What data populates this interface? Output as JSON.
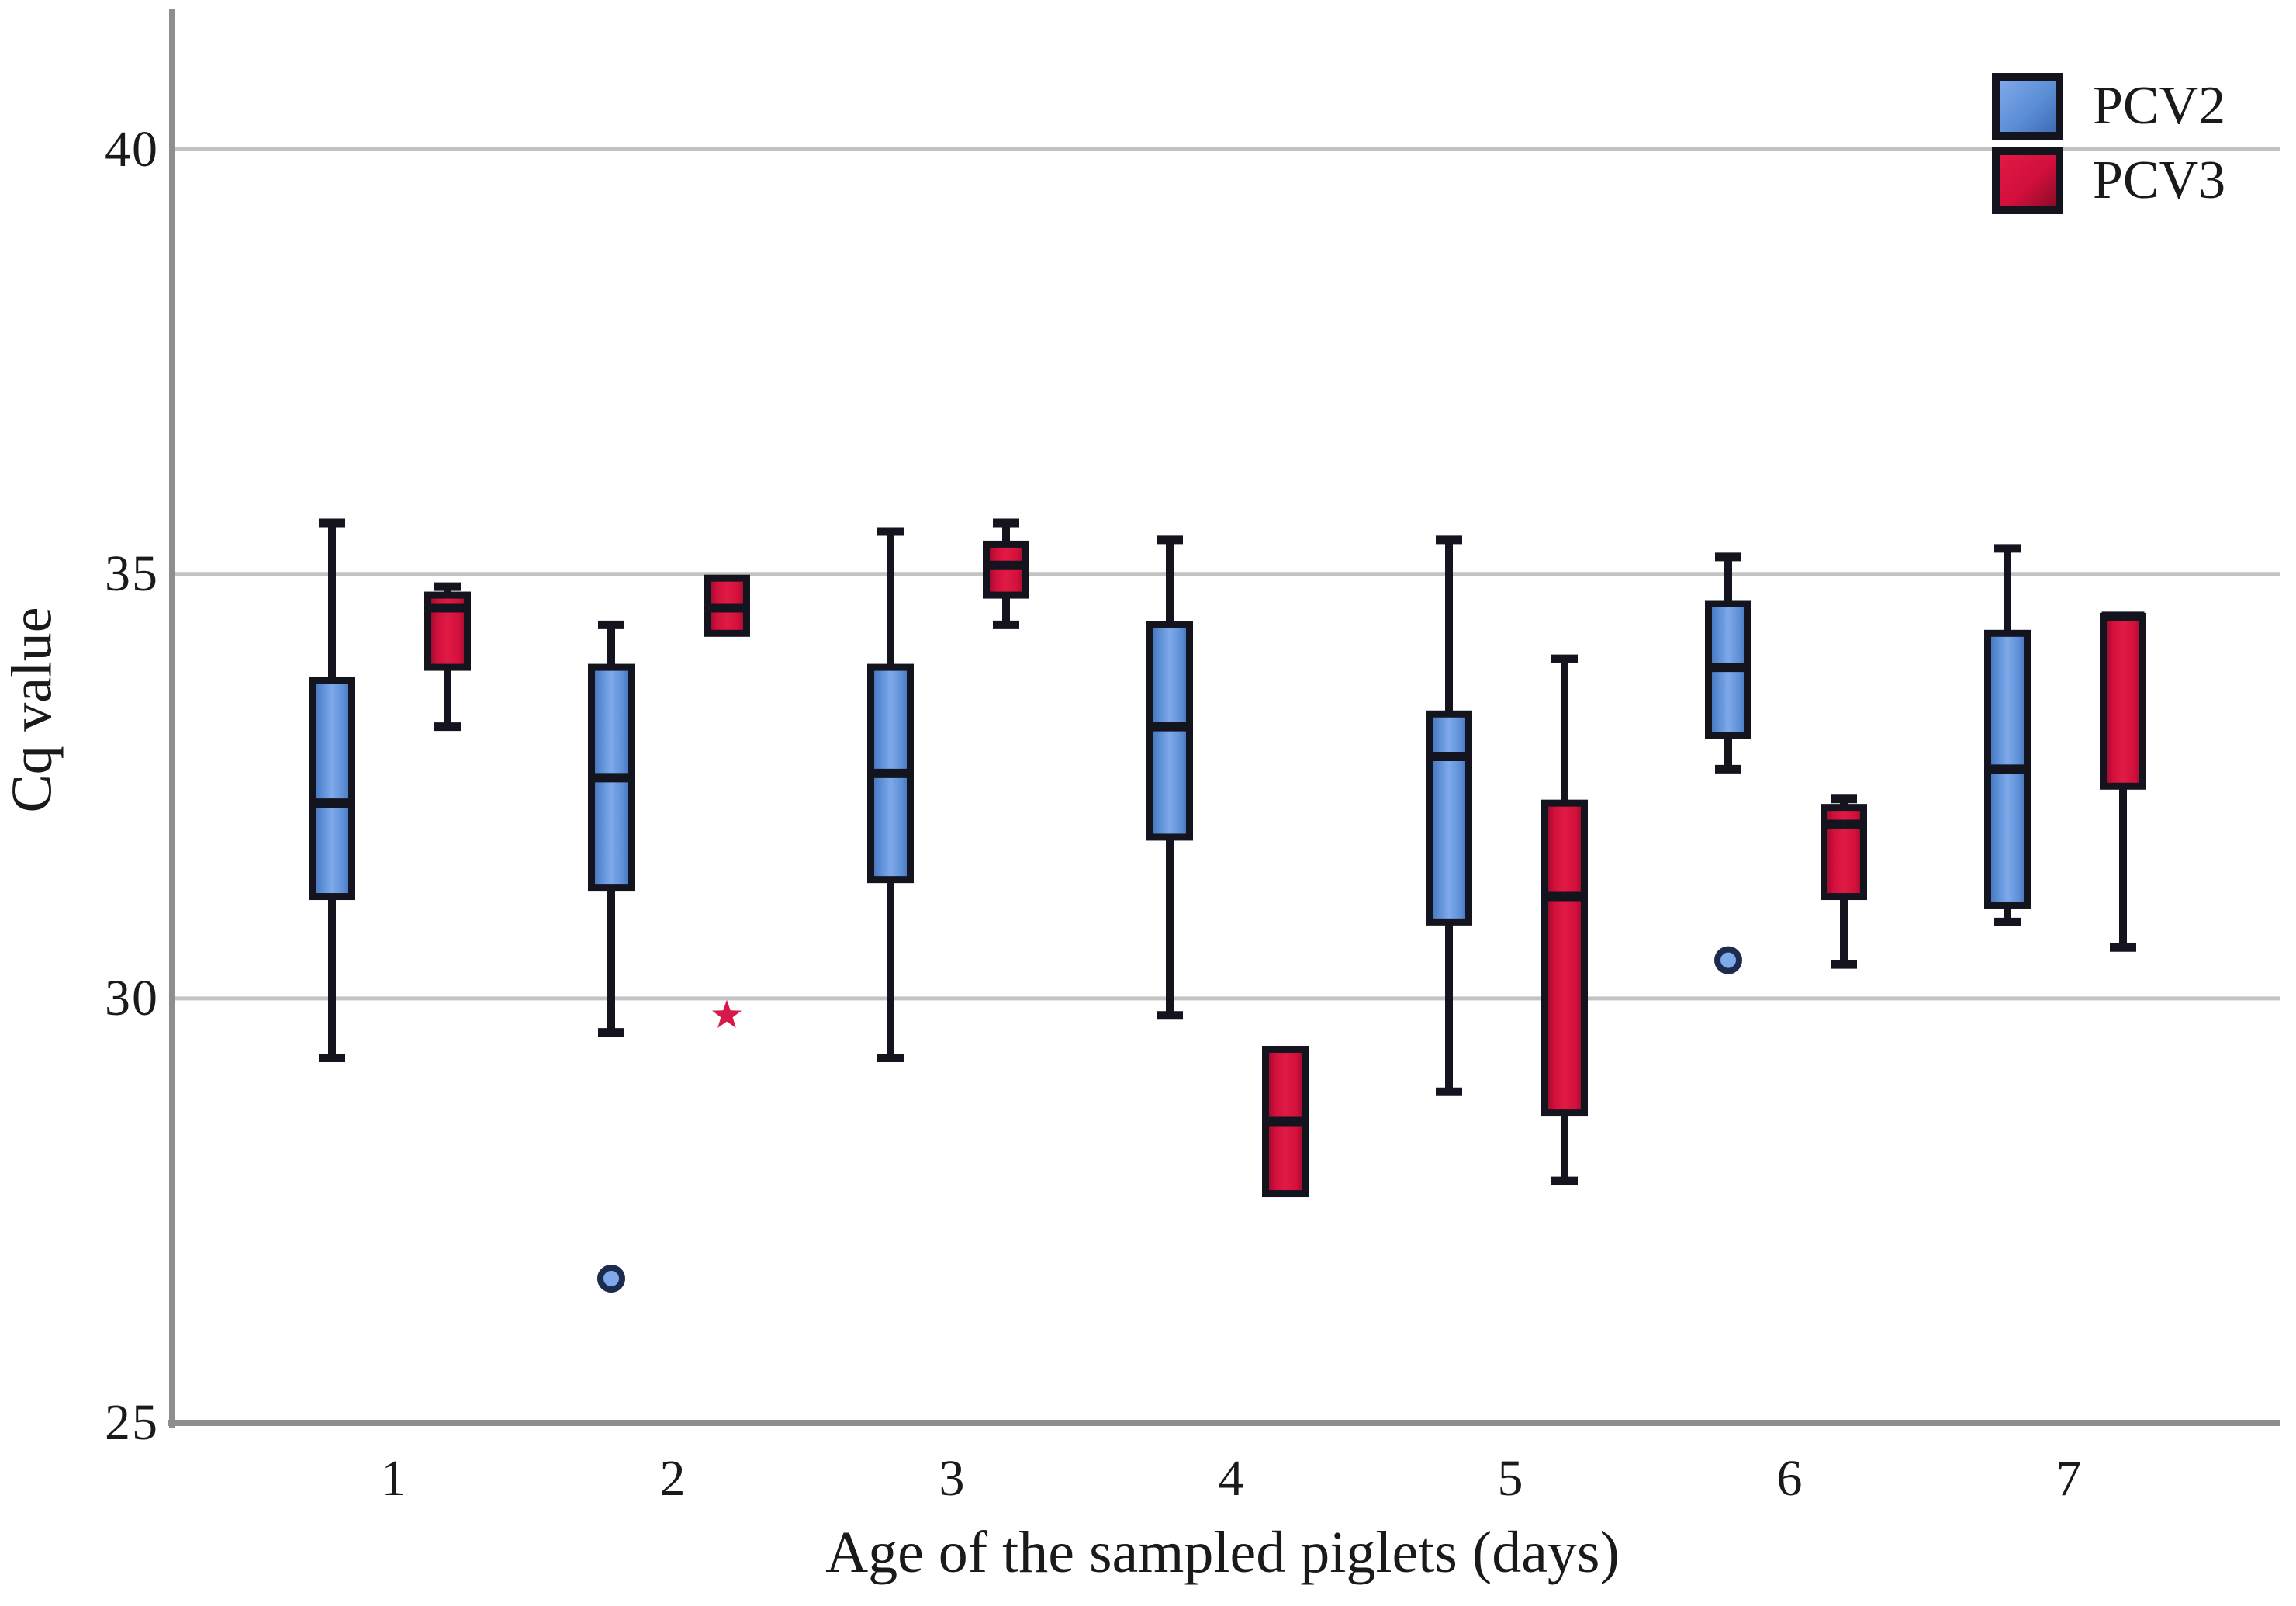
{
  "chart_data": {
    "type": "boxplot",
    "title": "",
    "xlabel": "Age of the sampled piglets (days)",
    "ylabel": "Cq value",
    "categories": [
      "1",
      "2",
      "3",
      "4",
      "5",
      "6",
      "7"
    ],
    "y_tick_labels": [
      "40",
      "35",
      "30",
      "25"
    ],
    "y_tick_values": [
      40,
      35,
      30,
      25
    ],
    "grid_values": [
      30,
      35,
      40
    ],
    "ylim": [
      25,
      41.65
    ],
    "grid": true,
    "legend_position": "top-right",
    "colors": {
      "axis": "#8e8e8e",
      "grid": "#c3c3c3",
      "box_border": "#14141e",
      "outlier_stroke": "#1d2b4e",
      "extreme_marker": "#d6194a",
      "text": "#1a1a1a",
      "background": "#ffffff"
    },
    "series": [
      {
        "name": "PCV2",
        "fill": "#5b8ed6",
        "fill_light": "#7fa9ea",
        "fill_dark": "#3f6cb5",
        "boxes": [
          {
            "category": "1",
            "min": 29.3,
            "q1": 31.2,
            "median": 32.3,
            "q3": 33.75,
            "max": 35.6,
            "outliers": [],
            "extremes": []
          },
          {
            "category": "2",
            "min": 29.6,
            "q1": 31.3,
            "median": 32.6,
            "q3": 33.9,
            "max": 34.4,
            "outliers": [
              26.7
            ],
            "extremes": []
          },
          {
            "category": "3",
            "min": 29.3,
            "q1": 31.4,
            "median": 32.65,
            "q3": 33.9,
            "max": 35.5,
            "outliers": [],
            "extremes": []
          },
          {
            "category": "4",
            "min": 29.8,
            "q1": 31.9,
            "median": 33.2,
            "q3": 34.4,
            "max": 35.4,
            "outliers": [],
            "extremes": []
          },
          {
            "category": "5",
            "min": 28.9,
            "q1": 30.9,
            "median": 32.85,
            "q3": 33.35,
            "max": 35.4,
            "outliers": [],
            "extremes": []
          },
          {
            "category": "6",
            "min": 32.7,
            "q1": 33.1,
            "median": 33.9,
            "q3": 34.65,
            "max": 35.2,
            "outliers": [
              30.45
            ],
            "extremes": []
          },
          {
            "category": "7",
            "min": 30.9,
            "q1": 31.1,
            "median": 32.7,
            "q3": 34.3,
            "max": 35.3,
            "outliers": [],
            "extremes": []
          }
        ]
      },
      {
        "name": "PCV3",
        "fill": "#d30f3c",
        "fill_light": "#e01a44",
        "fill_dark": "#8a0b28",
        "boxes": [
          {
            "category": "1",
            "min": 33.2,
            "q1": 33.9,
            "median": 34.6,
            "q3": 34.75,
            "max": 34.85,
            "outliers": [],
            "extremes": []
          },
          {
            "category": "2",
            "min": 34.3,
            "q1": 34.3,
            "median": 34.6,
            "q3": 34.95,
            "max": 34.95,
            "outliers": [],
            "extremes": [
              29.8
            ]
          },
          {
            "category": "3",
            "min": 34.4,
            "q1": 34.75,
            "median": 35.1,
            "q3": 35.35,
            "max": 35.6,
            "outliers": [],
            "extremes": []
          },
          {
            "category": "4",
            "min": 27.7,
            "q1": 27.7,
            "median": 28.55,
            "q3": 29.4,
            "max": 29.4,
            "outliers": [],
            "extremes": []
          },
          {
            "category": "5",
            "min": 27.85,
            "q1": 28.65,
            "median": 31.2,
            "q3": 32.3,
            "max": 34.0,
            "outliers": [],
            "extremes": []
          },
          {
            "category": "6",
            "min": 30.4,
            "q1": 31.2,
            "median": 32.05,
            "q3": 32.25,
            "max": 32.35,
            "outliers": [],
            "extremes": []
          },
          {
            "category": "7",
            "min": 30.6,
            "q1": 32.5,
            "median": 34.5,
            "q3": 34.5,
            "max": 34.5,
            "outliers": [],
            "extremes": []
          }
        ]
      }
    ]
  }
}
